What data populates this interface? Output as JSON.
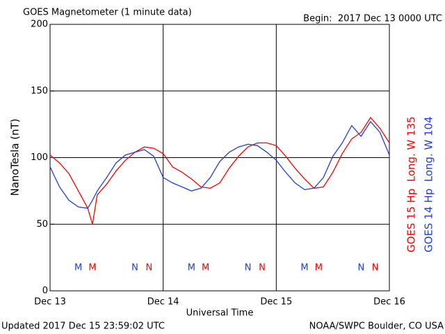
{
  "chart_data": {
    "type": "line",
    "title": "GOES Magnetometer (1 minute data)",
    "subtitle": "Begin:  2017 Dec 13 0000 UTC",
    "y_label": "NanoTesla (nT)",
    "x_label": "Universal Time",
    "footer_left": "Updated 2017 Dec 15 23:59:02 UTC",
    "footer_right": "NOAA/SWPC Boulder, CO USA",
    "x": [
      0,
      2,
      4,
      6,
      8,
      9,
      10,
      12,
      14,
      16,
      18,
      20,
      22,
      24,
      26,
      28,
      30,
      32,
      34,
      36,
      38,
      40,
      42,
      44,
      46,
      48,
      50,
      52,
      54,
      56,
      58,
      60,
      62,
      64,
      66,
      68,
      70,
      72
    ],
    "series": [
      {
        "name": "GOES 15 Hp  Long. W 135",
        "color": "#ff0000",
        "values": [
          102,
          96,
          88,
          75,
          62,
          50,
          72,
          80,
          90,
          98,
          104,
          108,
          107,
          103,
          93,
          89,
          84,
          78,
          77,
          81,
          92,
          101,
          108,
          111,
          111,
          109,
          101,
          92,
          84,
          77,
          78,
          89,
          103,
          114,
          119,
          130,
          122,
          111
        ]
      },
      {
        "name": "GOES 14 Hp  Long. W 104",
        "color": "#1f3fd6",
        "values": [
          93,
          78,
          68,
          63,
          62,
          68,
          75,
          85,
          96,
          102,
          104,
          106,
          101,
          85,
          81,
          78,
          75,
          77,
          85,
          97,
          104,
          108,
          110,
          109,
          104,
          98,
          89,
          81,
          76,
          77,
          85,
          101,
          111,
          124,
          116,
          127,
          119,
          102
        ]
      }
    ],
    "xlim": [
      0,
      72
    ],
    "xticks": [
      {
        "value": 0,
        "label": "Dec 13"
      },
      {
        "value": 24,
        "label": "Dec 14"
      },
      {
        "value": 48,
        "label": "Dec 15"
      },
      {
        "value": 72,
        "label": "Dec 16"
      }
    ],
    "ylim": [
      0,
      200
    ],
    "yticks": [
      0,
      50,
      100,
      150,
      200
    ],
    "grid": true,
    "annotations": [
      {
        "text": "M",
        "x": 6,
        "color": "#1f3fd6"
      },
      {
        "text": "M",
        "x": 9,
        "color": "#ff0000"
      },
      {
        "text": "N",
        "x": 18,
        "color": "#1f3fd6"
      },
      {
        "text": "N",
        "x": 21,
        "color": "#ff0000"
      },
      {
        "text": "M",
        "x": 30,
        "color": "#1f3fd6"
      },
      {
        "text": "M",
        "x": 33,
        "color": "#ff0000"
      },
      {
        "text": "N",
        "x": 42,
        "color": "#1f3fd6"
      },
      {
        "text": "N",
        "x": 45,
        "color": "#ff0000"
      },
      {
        "text": "M",
        "x": 54,
        "color": "#1f3fd6"
      },
      {
        "text": "M",
        "x": 57,
        "color": "#ff0000"
      },
      {
        "text": "N",
        "x": 66,
        "color": "#1f3fd6"
      },
      {
        "text": "N",
        "x": 69,
        "color": "#ff0000"
      }
    ]
  }
}
